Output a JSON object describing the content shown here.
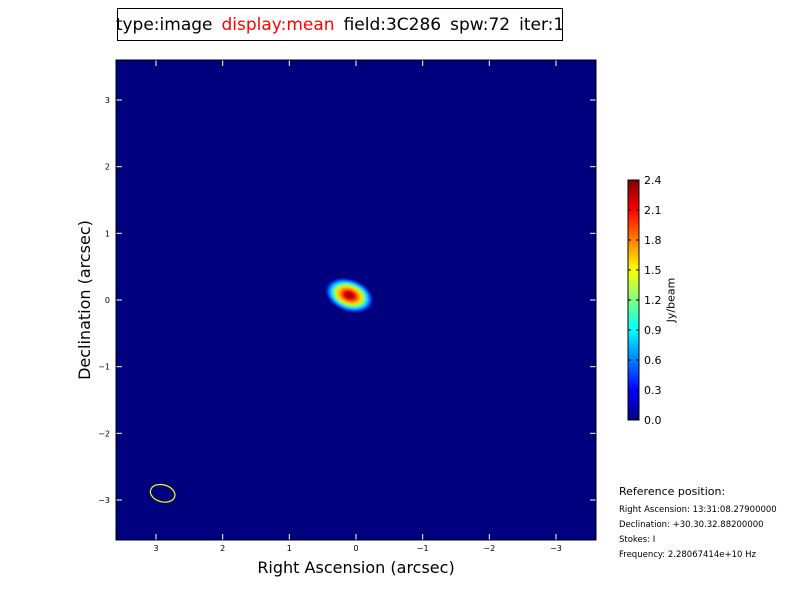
{
  "title_parts": {
    "type": "type:image",
    "display": "display:mean",
    "field": "field:3C286",
    "spw": "spw:72",
    "iter": "iter:1"
  },
  "colors": {
    "background_map": "#00007f",
    "beam": "#ffff00",
    "highlight": "#ff0000"
  },
  "reference": {
    "title": "Reference position:",
    "ra": "Right Ascension: 13:31:08.27900000",
    "dec": "Declination: +30.30.32.88200000",
    "stokes": "Stokes: I",
    "freq": "Frequency: 2.28067414e+10 Hz"
  },
  "chart_data": {
    "type": "heatmap",
    "colormap": "jet",
    "xlabel": "Right Ascension (arcsec)",
    "ylabel": "Declination (arcsec)",
    "xlim": [
      3.6,
      -3.6
    ],
    "ylim": [
      -3.6,
      3.6
    ],
    "xticks": [
      3,
      2,
      1,
      0,
      -1,
      -2,
      -3
    ],
    "yticks": [
      3,
      2,
      1,
      0,
      -1,
      -2,
      -3
    ],
    "xtick_labels": [
      "3",
      "2",
      "1",
      "0",
      "−1",
      "−2",
      "−3"
    ],
    "ytick_labels": [
      "3",
      "2",
      "1",
      "0",
      "−1",
      "−2",
      "−3"
    ],
    "source": {
      "x": 0.1,
      "y": 0.07,
      "peak": 2.4
    },
    "beam": {
      "x": 2.9,
      "y": -2.9
    },
    "colorbar": {
      "label": "Jy/beam",
      "range": [
        0,
        2.4
      ],
      "ticks": [
        0.0,
        0.3,
        0.6,
        0.9,
        1.2,
        1.5,
        1.8,
        2.1,
        2.4
      ],
      "tick_labels": [
        "0.0",
        "0.3",
        "0.6",
        "0.9",
        "1.2",
        "1.5",
        "1.8",
        "2.1",
        "2.4"
      ]
    }
  }
}
